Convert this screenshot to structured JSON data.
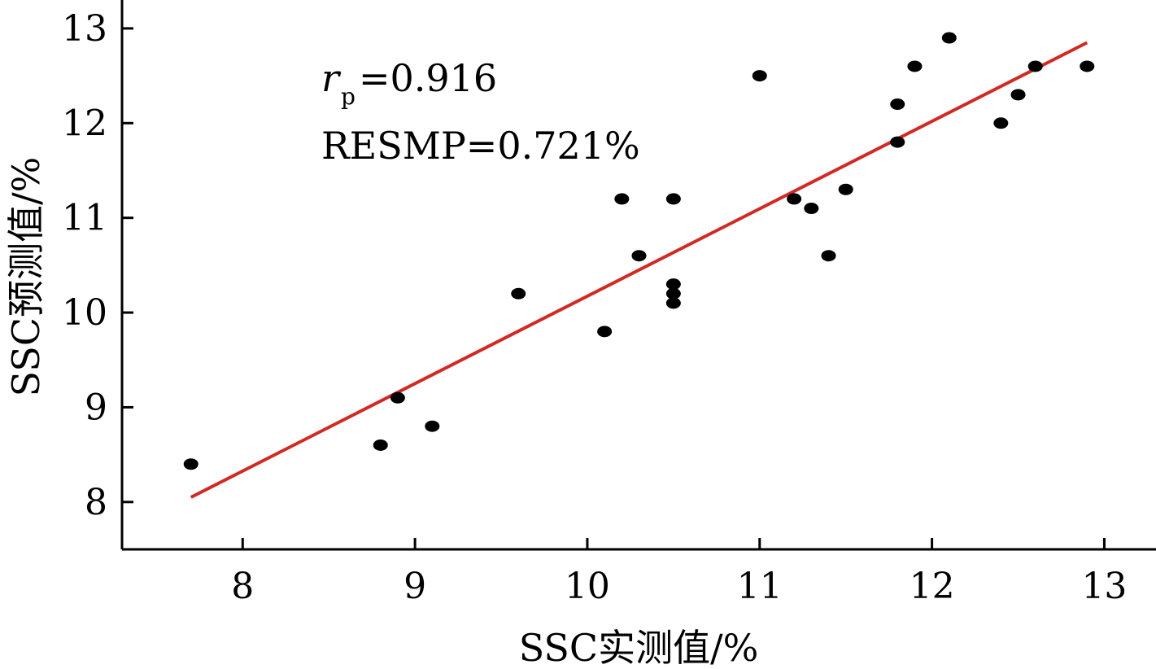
{
  "chart_data": {
    "type": "scatter",
    "xlabel": "SSC实测值/%",
    "ylabel": "SSC预测值/%",
    "xlim": [
      7.3,
      13.3
    ],
    "ylim": [
      7.5,
      13.3
    ],
    "x_ticks": [
      8,
      9,
      10,
      11,
      12,
      13
    ],
    "y_ticks": [
      8,
      9,
      10,
      11,
      12,
      13
    ],
    "x_tick_labels": [
      "8",
      "9",
      "10",
      "11",
      "12",
      "13"
    ],
    "y_tick_labels": [
      "8",
      "9",
      "10",
      "11",
      "12",
      "13"
    ],
    "grid": false,
    "points": [
      {
        "x": 7.7,
        "y": 8.4
      },
      {
        "x": 8.8,
        "y": 8.6
      },
      {
        "x": 8.9,
        "y": 9.1
      },
      {
        "x": 9.1,
        "y": 8.8
      },
      {
        "x": 9.6,
        "y": 10.2
      },
      {
        "x": 10.1,
        "y": 9.8
      },
      {
        "x": 10.2,
        "y": 11.2
      },
      {
        "x": 10.3,
        "y": 10.6
      },
      {
        "x": 10.5,
        "y": 11.2
      },
      {
        "x": 10.5,
        "y": 10.3
      },
      {
        "x": 10.5,
        "y": 10.2
      },
      {
        "x": 10.5,
        "y": 10.1
      },
      {
        "x": 11.0,
        "y": 12.5
      },
      {
        "x": 11.2,
        "y": 11.2
      },
      {
        "x": 11.3,
        "y": 11.1
      },
      {
        "x": 11.4,
        "y": 10.6
      },
      {
        "x": 11.5,
        "y": 11.3
      },
      {
        "x": 11.8,
        "y": 12.2
      },
      {
        "x": 11.8,
        "y": 11.8
      },
      {
        "x": 11.9,
        "y": 12.6
      },
      {
        "x": 12.1,
        "y": 12.9
      },
      {
        "x": 12.4,
        "y": 12.0
      },
      {
        "x": 12.5,
        "y": 12.3
      },
      {
        "x": 12.6,
        "y": 12.6
      },
      {
        "x": 12.9,
        "y": 12.6
      }
    ],
    "fit_line": {
      "x": [
        7.7,
        12.9
      ],
      "y": [
        8.05,
        12.85
      ]
    },
    "annotations": {
      "r_symbol": "r",
      "r_subscript": "p",
      "r_value": "=0.916",
      "resmp": "RESMP=0.721%"
    },
    "colors": {
      "points": "#000000",
      "fit_line": "#d12a24",
      "axes": "#000000"
    }
  }
}
